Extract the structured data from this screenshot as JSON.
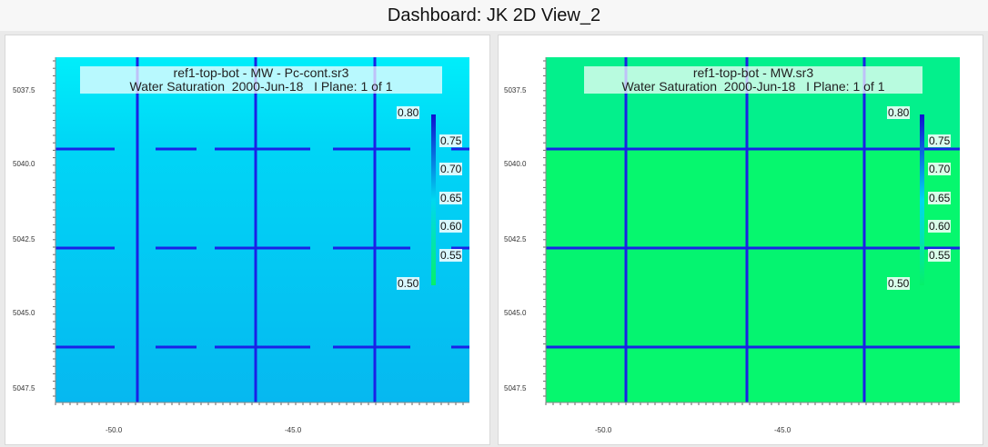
{
  "dashboard": {
    "title": "Dashboard: JK 2D View_2"
  },
  "views": [
    {
      "title_line1": "ref1-top-bot - MW - Pc-cont.sr3",
      "title_line2": "Water Saturation  2000-Jun-18   I Plane: 1 of 1",
      "fill_color": "#06b8f0",
      "fill_color_top": "#00eefa"
    },
    {
      "title_line1": "ref1-top-bot - MW.sr3",
      "title_line2": "Water Saturation  2000-Jun-18   I Plane: 1 of 1",
      "fill_color": "#06f76e",
      "fill_color_top": "#03f08c"
    }
  ],
  "axes": {
    "y_ticks": [
      "5037.5",
      "5040.0",
      "5042.5",
      "5045.0",
      "5047.5"
    ],
    "x_ticks": [
      "-50.0",
      "-45.0"
    ]
  },
  "colorbar": {
    "max_label": "0.80",
    "min_label": "0.50",
    "tick_labels": [
      "0.75",
      "0.70",
      "0.65",
      "0.60",
      "0.55"
    ]
  },
  "colors": {
    "grid_line": "#1a22e6",
    "colorbar_top": "#1010d0",
    "colorbar_mid": "#00d8f0",
    "colorbar_bottom": "#05f06a"
  }
}
